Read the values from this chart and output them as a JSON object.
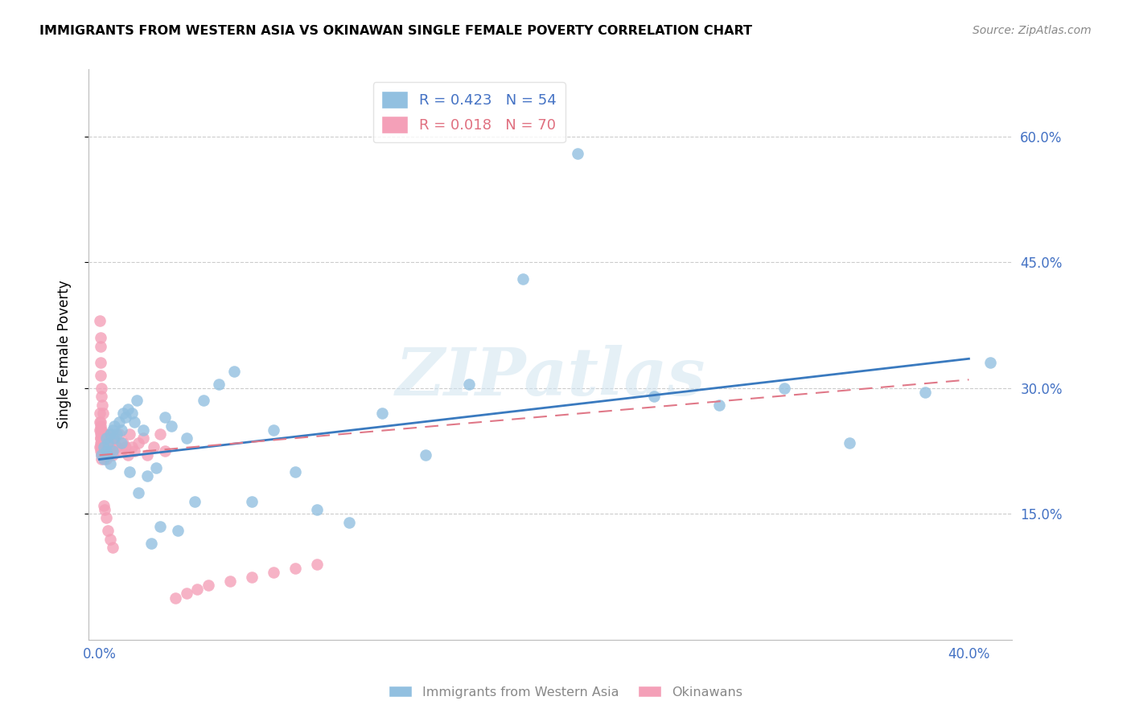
{
  "title": "IMMIGRANTS FROM WESTERN ASIA VS OKINAWAN SINGLE FEMALE POVERTY CORRELATION CHART",
  "source": "Source: ZipAtlas.com",
  "ylabel": "Single Female Poverty",
  "ytick_labels": [
    "60.0%",
    "45.0%",
    "30.0%",
    "15.0%"
  ],
  "ytick_values": [
    0.6,
    0.45,
    0.3,
    0.15
  ],
  "xtick_labels": [
    "0.0%",
    "",
    "",
    "",
    "40.0%"
  ],
  "xtick_values": [
    0.0,
    0.1,
    0.2,
    0.3,
    0.4
  ],
  "xlim": [
    -0.005,
    0.42
  ],
  "ylim": [
    0.0,
    0.68
  ],
  "legend_blue_r": "R = 0.423",
  "legend_blue_n": "N = 54",
  "legend_pink_r": "R = 0.018",
  "legend_pink_n": "N = 70",
  "blue_color": "#92c0e0",
  "pink_color": "#f4a0b8",
  "blue_line_color": "#3a7abf",
  "pink_line_color": "#e07888",
  "watermark_text": "ZIPatlas",
  "blue_scatter_x": [
    0.001,
    0.002,
    0.002,
    0.003,
    0.003,
    0.004,
    0.004,
    0.005,
    0.005,
    0.006,
    0.006,
    0.007,
    0.007,
    0.008,
    0.009,
    0.01,
    0.01,
    0.011,
    0.012,
    0.013,
    0.014,
    0.015,
    0.016,
    0.017,
    0.018,
    0.02,
    0.022,
    0.024,
    0.026,
    0.028,
    0.03,
    0.033,
    0.036,
    0.04,
    0.044,
    0.048,
    0.055,
    0.062,
    0.07,
    0.08,
    0.09,
    0.1,
    0.115,
    0.13,
    0.15,
    0.17,
    0.195,
    0.22,
    0.255,
    0.285,
    0.315,
    0.345,
    0.38,
    0.41
  ],
  "blue_scatter_y": [
    0.22,
    0.215,
    0.23,
    0.225,
    0.24,
    0.22,
    0.235,
    0.21,
    0.245,
    0.225,
    0.25,
    0.24,
    0.255,
    0.245,
    0.26,
    0.235,
    0.25,
    0.27,
    0.265,
    0.275,
    0.2,
    0.27,
    0.26,
    0.285,
    0.175,
    0.25,
    0.195,
    0.115,
    0.205,
    0.135,
    0.265,
    0.255,
    0.13,
    0.24,
    0.165,
    0.285,
    0.305,
    0.32,
    0.165,
    0.25,
    0.2,
    0.155,
    0.14,
    0.27,
    0.22,
    0.305,
    0.43,
    0.58,
    0.29,
    0.28,
    0.3,
    0.235,
    0.295,
    0.33
  ],
  "pink_scatter_x": [
    0.0002,
    0.0002,
    0.0003,
    0.0003,
    0.0004,
    0.0004,
    0.0005,
    0.0005,
    0.0005,
    0.0006,
    0.0006,
    0.0007,
    0.0007,
    0.0008,
    0.0008,
    0.0009,
    0.0009,
    0.001,
    0.001,
    0.001,
    0.0012,
    0.0012,
    0.0013,
    0.0014,
    0.0015,
    0.0015,
    0.0016,
    0.0017,
    0.0018,
    0.002,
    0.002,
    0.0022,
    0.0024,
    0.0025,
    0.003,
    0.003,
    0.0032,
    0.0035,
    0.004,
    0.004,
    0.0045,
    0.005,
    0.005,
    0.006,
    0.006,
    0.007,
    0.008,
    0.009,
    0.01,
    0.011,
    0.012,
    0.013,
    0.014,
    0.015,
    0.016,
    0.018,
    0.02,
    0.022,
    0.025,
    0.028,
    0.03,
    0.035,
    0.04,
    0.045,
    0.05,
    0.06,
    0.07,
    0.08,
    0.09,
    0.1
  ],
  "pink_scatter_y": [
    0.25,
    0.23,
    0.26,
    0.27,
    0.24,
    0.255,
    0.235,
    0.26,
    0.245,
    0.225,
    0.25,
    0.23,
    0.24,
    0.215,
    0.235,
    0.245,
    0.225,
    0.22,
    0.235,
    0.25,
    0.23,
    0.245,
    0.24,
    0.225,
    0.23,
    0.22,
    0.235,
    0.245,
    0.225,
    0.24,
    0.23,
    0.22,
    0.235,
    0.245,
    0.23,
    0.215,
    0.225,
    0.235,
    0.24,
    0.22,
    0.23,
    0.245,
    0.225,
    0.24,
    0.22,
    0.235,
    0.23,
    0.245,
    0.225,
    0.235,
    0.23,
    0.22,
    0.245,
    0.23,
    0.225,
    0.235,
    0.24,
    0.22,
    0.23,
    0.245,
    0.225,
    0.05,
    0.055,
    0.06,
    0.065,
    0.07,
    0.075,
    0.08,
    0.085,
    0.09
  ],
  "pink_low_x": [
    0.0003,
    0.0004,
    0.0005,
    0.0006,
    0.0007,
    0.0008,
    0.001,
    0.0012,
    0.0015,
    0.002,
    0.0025,
    0.003,
    0.004,
    0.005,
    0.006
  ],
  "pink_low_y": [
    0.38,
    0.36,
    0.35,
    0.33,
    0.315,
    0.3,
    0.29,
    0.28,
    0.27,
    0.16,
    0.155,
    0.145,
    0.13,
    0.12,
    0.11
  ]
}
